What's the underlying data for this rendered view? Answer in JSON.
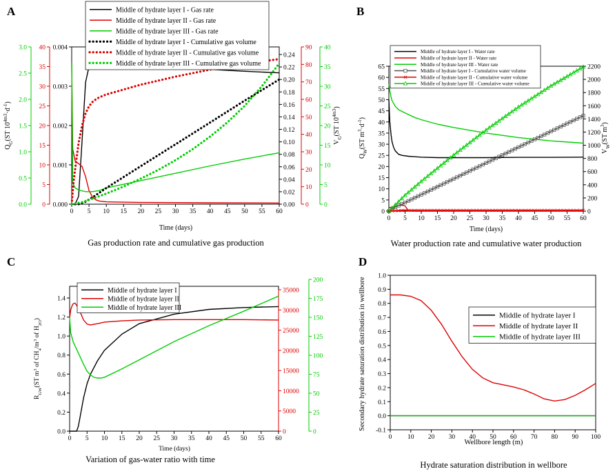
{
  "figure_type": "four-panel scientific figure",
  "chart_data": [
    {
      "id": "A",
      "type": "line",
      "panel_label": "A",
      "caption": "Gas production rate and cumulative gas production",
      "xlabel": "Time (days)",
      "xlim": [
        0,
        60
      ],
      "xticks": [
        0,
        5,
        10,
        15,
        20,
        25,
        30,
        35,
        40,
        45,
        50,
        55,
        60
      ],
      "axes": {
        "left_inner": {
          "color": "#000000",
          "lim": [
            0,
            0.004
          ],
          "ticks": [
            "0.000",
            "0.001",
            "0.002",
            "0.003",
            "0.004"
          ]
        },
        "left_mid": {
          "color": "#dd0000",
          "lim": [
            0,
            40
          ],
          "ticks": [
            0,
            5,
            10,
            15,
            20,
            25,
            30,
            35,
            40
          ]
        },
        "left_outer": {
          "color": "#00cc00",
          "lim": [
            0,
            3.0
          ],
          "ticks": [
            "0.0",
            "0.5",
            "1.0",
            "1.5",
            "2.0",
            "2.5",
            "3.0"
          ]
        },
        "right_inner": {
          "color": "#000000",
          "lim": [
            0,
            0.25
          ],
          "ticks": [
            "0.00",
            "0.02",
            "0.04",
            "0.06",
            "0.08",
            "0.10",
            "0.12",
            "0.14",
            "0.16",
            "0.18",
            "0.20",
            "0.22",
            "0.24"
          ]
        },
        "right_mid": {
          "color": "#dd0000",
          "lim": [
            0,
            90
          ],
          "ticks": [
            0,
            10,
            20,
            30,
            40,
            50,
            60,
            70,
            80,
            90
          ]
        },
        "right_outer": {
          "color": "#00cc00",
          "lim": [
            0,
            40
          ],
          "ticks": [
            0,
            5,
            10,
            15,
            20,
            25,
            30,
            35,
            40
          ]
        }
      },
      "left_label": "Q_G(ST 10^4m^3·d^-1)",
      "right_label": "V_G(ST 10^4m^3)",
      "series": [
        {
          "name": "Middle of hydrate layer I - Gas rate",
          "axis": "left_inner",
          "color": "#000000",
          "style": "solid",
          "x": [
            0,
            1,
            2,
            3,
            4,
            5,
            6,
            7,
            8,
            10,
            12,
            15,
            20,
            25,
            30,
            40,
            50,
            60
          ],
          "y": [
            0,
            0,
            0.0002,
            0.0016,
            0.0031,
            0.0035,
            0.00365,
            0.00367,
            0.00366,
            0.00361,
            0.00357,
            0.00353,
            0.0035,
            0.00348,
            0.00347,
            0.00343,
            0.00338,
            0.00334
          ]
        },
        {
          "name": "Middle of hydrate layer II - Gas rate",
          "axis": "left_mid",
          "color": "#dd0000",
          "style": "solid",
          "x": [
            0,
            0.3,
            1,
            2,
            3,
            4,
            5,
            6,
            7,
            8,
            10,
            15,
            20,
            30,
            40,
            60
          ],
          "y": [
            36,
            14,
            11,
            10.3,
            9.6,
            7,
            3.5,
            1.8,
            1.1,
            0.8,
            0.6,
            0.5,
            0.45,
            0.4,
            0.35,
            0.3
          ]
        },
        {
          "name": "Middle of hydrate layer III - Gas rate",
          "axis": "left_outer",
          "color": "#00cc00",
          "style": "solid",
          "x": [
            0,
            0.3,
            1,
            2,
            4,
            6,
            8,
            10,
            20,
            30,
            40,
            50,
            60
          ],
          "y": [
            2.7,
            0.4,
            0.31,
            0.27,
            0.24,
            0.24,
            0.26,
            0.31,
            0.45,
            0.59,
            0.73,
            0.86,
            0.98
          ]
        },
        {
          "name": "Middle of hydrate layer I - Cumulative gas volume",
          "axis": "right_inner",
          "color": "#000000",
          "style": "dotted",
          "x": [
            0,
            2,
            4,
            6,
            10,
            20,
            30,
            40,
            50,
            60
          ],
          "y": [
            0,
            0,
            0.004,
            0.011,
            0.026,
            0.061,
            0.096,
            0.131,
            0.166,
            0.2
          ]
        },
        {
          "name": "Middle of hydrate layer II - Cumulative gas volume",
          "axis": "right_mid",
          "color": "#dd0000",
          "style": "dotted",
          "x": [
            0,
            0.5,
            1,
            2,
            3,
            4,
            5,
            6,
            7,
            8,
            10,
            15,
            20,
            30,
            40,
            50,
            60
          ],
          "y": [
            0,
            12,
            20,
            35,
            45,
            52,
            56,
            58.5,
            60,
            61.2,
            62.8,
            65.6,
            68.4,
            73,
            77,
            80.5,
            83
          ]
        },
        {
          "name": "Middle of hydrate layer III - Cumulative gas volume",
          "axis": "right_outer",
          "color": "#00cc00",
          "style": "dotted",
          "x": [
            0,
            3,
            6,
            10,
            15,
            20,
            25,
            30,
            35,
            40,
            45,
            50,
            55,
            60
          ],
          "y": [
            0,
            0.5,
            1.4,
            2.7,
            4.5,
            6.5,
            8.7,
            11.2,
            14,
            17.2,
            20.8,
            25,
            30,
            35.8
          ]
        }
      ]
    },
    {
      "id": "B",
      "type": "line",
      "panel_label": "B",
      "caption": "Water production rate and cumulative water production",
      "xlabel": "Time (days)",
      "xlim": [
        0,
        60
      ],
      "xticks": [
        0,
        5,
        10,
        15,
        20,
        25,
        30,
        35,
        40,
        45,
        50,
        55,
        60
      ],
      "axes": {
        "left": {
          "color": "#000000",
          "lim": [
            0,
            65
          ],
          "ticks": [
            0,
            5,
            10,
            15,
            20,
            25,
            30,
            35,
            40,
            45,
            50,
            55,
            60,
            65
          ]
        },
        "right": {
          "color": "#000000",
          "lim": [
            0,
            2200
          ],
          "ticks": [
            0,
            200,
            400,
            600,
            800,
            1000,
            1200,
            1400,
            1600,
            1800,
            2000,
            2200
          ]
        }
      },
      "left_label": "Q_W(ST m^3·d^-1)",
      "right_label": "V_W(ST m^3)",
      "series": [
        {
          "name": "Middle of hydrate layer I - Water rate",
          "axis": "left",
          "color": "#000000",
          "style": "solid",
          "x": [
            0,
            0.3,
            0.7,
            1,
            1.5,
            2,
            3,
            4,
            6,
            8,
            10,
            15,
            20,
            30,
            40,
            50,
            60
          ],
          "y": [
            50,
            40,
            34,
            31,
            28.5,
            27,
            25.5,
            25,
            24.6,
            24.4,
            24.2,
            24,
            24,
            24,
            24.1,
            24.1,
            24.2
          ]
        },
        {
          "name": "Middle of hydrate layer II - Water rate",
          "axis": "left",
          "color": "#dd0000",
          "style": "solid",
          "x": [
            0,
            1,
            2,
            3,
            4,
            5,
            6,
            7,
            8,
            60
          ],
          "y": [
            1.5,
            1.8,
            2.2,
            2.5,
            2.8,
            2.3,
            0.3,
            0,
            0,
            0
          ]
        },
        {
          "name": "Middle of hydrate layer III - Water rate",
          "axis": "left",
          "color": "#00cc00",
          "style": "solid",
          "x": [
            0,
            0.3,
            0.7,
            1,
            2,
            3,
            5,
            8,
            10,
            15,
            20,
            30,
            40,
            50,
            60
          ],
          "y": [
            57,
            54,
            51,
            49.5,
            47,
            45.5,
            44,
            42,
            41,
            39,
            37.5,
            35,
            33,
            31.5,
            30.5
          ]
        },
        {
          "name": "Middle of hydrate layer I - Cumulative water volume",
          "axis": "right",
          "color": "#555555",
          "style": "square-markers",
          "x": [
            0,
            2,
            5,
            10,
            20,
            30,
            40,
            50,
            60
          ],
          "y": [
            0,
            60,
            130,
            250,
            490,
            730,
            970,
            1210,
            1450
          ]
        },
        {
          "name": "Middle of hydrate layer II - Cumulative water volume",
          "axis": "right",
          "color": "#dd0000",
          "style": "x-markers",
          "x": [
            0,
            2,
            4,
            6,
            8,
            60
          ],
          "y": [
            0,
            5,
            10,
            12,
            12,
            12
          ]
        },
        {
          "name": "Middle of hydrate layer III - Cumulative water volume",
          "axis": "right",
          "color": "#00cc00",
          "style": "triangle-markers",
          "x": [
            0,
            2,
            5,
            10,
            20,
            30,
            40,
            50,
            60
          ],
          "y": [
            0,
            95,
            240,
            450,
            850,
            1230,
            1580,
            1900,
            2190
          ]
        }
      ]
    },
    {
      "id": "C",
      "type": "line",
      "panel_label": "C",
      "caption": "Variation of gas-water ratio with time",
      "xlabel": "Time (days)",
      "xlim": [
        0,
        60
      ],
      "xticks": [
        0,
        5,
        10,
        15,
        20,
        25,
        30,
        35,
        40,
        45,
        50,
        55,
        60
      ],
      "axes": {
        "left": {
          "color": "#000000",
          "lim": [
            0,
            1.5
          ],
          "ticks": [
            "0.0",
            "0.2",
            "0.4",
            "0.6",
            "0.8",
            "1.0",
            "1.2",
            "1.4"
          ]
        },
        "right_inner": {
          "color": "#dd0000",
          "lim": [
            0,
            35000
          ],
          "ticks": [
            0,
            5000,
            10000,
            15000,
            20000,
            25000,
            30000,
            35000
          ]
        },
        "right_outer": {
          "color": "#00cc00",
          "lim": [
            0,
            200
          ],
          "ticks": [
            0,
            25,
            50,
            75,
            100,
            125,
            150,
            175,
            200
          ]
        }
      },
      "left_label": "R_GW(ST m^3 of CH_4/m^3 of H_2O)",
      "series": [
        {
          "name": "Middle of hydrate layer I",
          "axis": "left",
          "color": "#000000",
          "style": "solid",
          "x": [
            0,
            2,
            2.5,
            3,
            4,
            5,
            6,
            8,
            10,
            15,
            20,
            30,
            40,
            50,
            60
          ],
          "y": [
            0,
            0,
            0.05,
            0.15,
            0.35,
            0.5,
            0.6,
            0.74,
            0.85,
            1.02,
            1.13,
            1.23,
            1.28,
            1.3,
            1.31
          ]
        },
        {
          "name": "Middle of hydrate layer II",
          "axis": "right_inner",
          "color": "#dd0000",
          "style": "solid",
          "x": [
            0,
            0.3,
            0.7,
            1,
            1.5,
            2,
            3,
            4,
            5,
            6,
            8,
            10,
            15,
            20,
            30,
            40,
            50,
            60
          ],
          "y": [
            28000,
            30000,
            31000,
            31500,
            31700,
            31200,
            29500,
            27500,
            26500,
            26300,
            26600,
            27000,
            27300,
            27500,
            27600,
            27600,
            27600,
            27500
          ]
        },
        {
          "name": "Middle of hydrate layer III",
          "axis": "right_outer",
          "color": "#00cc00",
          "style": "solid",
          "x": [
            0,
            0.3,
            1,
            2,
            3,
            4,
            5,
            6,
            7,
            8,
            9,
            10,
            15,
            20,
            30,
            40,
            50,
            60
          ],
          "y": [
            150,
            130,
            118,
            108,
            98,
            88,
            79,
            74,
            71,
            70,
            70,
            71,
            82,
            94,
            118,
            139,
            158,
            178
          ]
        }
      ]
    },
    {
      "id": "D",
      "type": "line",
      "panel_label": "D",
      "caption": "Hydrate saturation distribution in wellbore",
      "xlabel": "Wellbore length (m)",
      "ylabel": "Secondary hydrate saturation distribution in wellbore",
      "xlim": [
        0,
        100
      ],
      "ylim": [
        -0.1,
        1.0
      ],
      "xticks": [
        0,
        10,
        20,
        30,
        40,
        50,
        60,
        70,
        80,
        90,
        100
      ],
      "yticks": [
        "-0.1",
        "0.0",
        "0.1",
        "0.2",
        "0.3",
        "0.4",
        "0.5",
        "0.6",
        "0.7",
        "0.8",
        "0.9",
        "1.0"
      ],
      "series": [
        {
          "name": "Middle of hydrate layer I",
          "color": "#000000",
          "style": "solid",
          "x": [
            0,
            100
          ],
          "y": [
            0,
            0
          ]
        },
        {
          "name": "Middle of hydrate layer II",
          "color": "#dd0000",
          "style": "solid",
          "x": [
            0,
            5,
            10,
            15,
            20,
            25,
            30,
            35,
            40,
            45,
            50,
            55,
            60,
            65,
            70,
            75,
            80,
            85,
            90,
            95,
            100
          ],
          "y": [
            0.86,
            0.86,
            0.85,
            0.82,
            0.75,
            0.65,
            0.53,
            0.42,
            0.33,
            0.27,
            0.235,
            0.22,
            0.205,
            0.185,
            0.155,
            0.12,
            0.105,
            0.115,
            0.145,
            0.185,
            0.23
          ]
        },
        {
          "name": "Middle of hydrate layer III",
          "color": "#00cc00",
          "style": "solid",
          "x": [
            0,
            100
          ],
          "y": [
            0,
            0
          ]
        }
      ]
    }
  ]
}
